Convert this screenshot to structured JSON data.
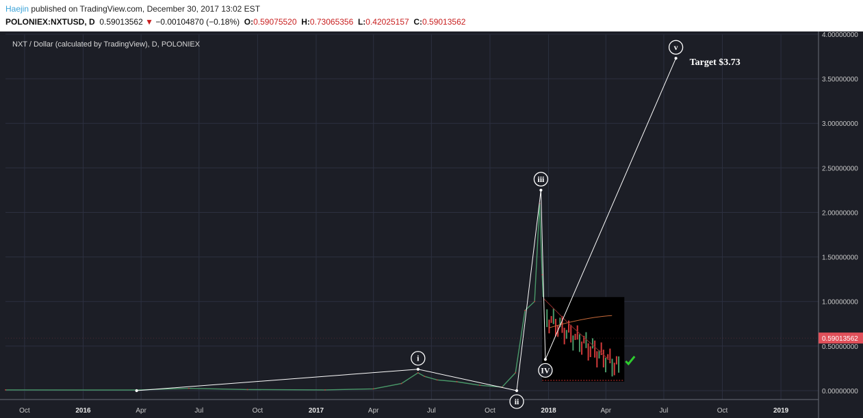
{
  "header": {
    "author": "Haejin",
    "published_text": " published on TradingView.com, December 30, 2017 13:02 EST",
    "symbol": "POLONIEX:NXTUSD, D",
    "last": "0.59013562",
    "change_arrow": "▼",
    "change": "−0.00104870 (−0.18%)",
    "o_label": "O:",
    "o_value": "0.59075520",
    "h_label": "H:",
    "h_value": "0.73065356",
    "l_label": "L:",
    "l_value": "0.42025157",
    "c_label": "C:",
    "c_value": "0.59013562"
  },
  "colors": {
    "background": "#1c1e26",
    "grid": "#2c3040",
    "wave_line": "#ffffff",
    "price_tag": "#e0505a",
    "candle_up": "#4a9a6a",
    "candle_down": "#d23a3a",
    "check": "#2ecc2e"
  },
  "chart_data": {
    "type": "line",
    "title": "NXT / Dollar (calculated by TradingView), D, POLONIEX",
    "y_axis": {
      "range": [
        -0.1,
        4.0
      ],
      "ticks": [
        "0.00000000",
        "0.50000000",
        "1.00000000",
        "1.50000000",
        "2.00000000",
        "2.50000000",
        "3.00000000",
        "3.50000000",
        "4.00000000"
      ],
      "tick_values": [
        0,
        0.5,
        1.0,
        1.5,
        2.0,
        2.5,
        3.0,
        3.5,
        4.0
      ]
    },
    "x_axis": {
      "range": [
        "2015-09-01",
        "2019-03-01"
      ],
      "ticks": [
        {
          "label": "Oct",
          "date": "2015-10-01",
          "bold": false
        },
        {
          "label": "2016",
          "date": "2016-01-01",
          "bold": true
        },
        {
          "label": "Apr",
          "date": "2016-04-01",
          "bold": false
        },
        {
          "label": "Jul",
          "date": "2016-07-01",
          "bold": false
        },
        {
          "label": "Oct",
          "date": "2016-10-01",
          "bold": false
        },
        {
          "label": "2017",
          "date": "2017-01-01",
          "bold": true
        },
        {
          "label": "Apr",
          "date": "2017-04-01",
          "bold": false
        },
        {
          "label": "Jul",
          "date": "2017-07-01",
          "bold": false
        },
        {
          "label": "Oct",
          "date": "2017-10-01",
          "bold": false
        },
        {
          "label": "2018",
          "date": "2018-01-01",
          "bold": true
        },
        {
          "label": "Apr",
          "date": "2018-04-01",
          "bold": false
        },
        {
          "label": "Jul",
          "date": "2018-07-01",
          "bold": false
        },
        {
          "label": "Oct",
          "date": "2018-10-01",
          "bold": false
        },
        {
          "label": "2019",
          "date": "2019-01-01",
          "bold": true
        }
      ]
    },
    "price_series": [
      {
        "date": "2015-09-01",
        "value": 0.008
      },
      {
        "date": "2016-03-25",
        "value": 0.007
      },
      {
        "date": "2016-06-15",
        "value": 0.025
      },
      {
        "date": "2016-09-15",
        "value": 0.012
      },
      {
        "date": "2017-01-15",
        "value": 0.008
      },
      {
        "date": "2017-04-01",
        "value": 0.02
      },
      {
        "date": "2017-05-15",
        "value": 0.08
      },
      {
        "date": "2017-06-10",
        "value": 0.2
      },
      {
        "date": "2017-06-20",
        "value": 0.16
      },
      {
        "date": "2017-07-10",
        "value": 0.12
      },
      {
        "date": "2017-08-10",
        "value": 0.1
      },
      {
        "date": "2017-09-15",
        "value": 0.06
      },
      {
        "date": "2017-10-20",
        "value": 0.04
      },
      {
        "date": "2017-11-10",
        "value": 0.2
      },
      {
        "date": "2017-11-25",
        "value": 0.9
      },
      {
        "date": "2017-12-10",
        "value": 1.0
      },
      {
        "date": "2017-12-18",
        "value": 2.1
      },
      {
        "date": "2017-12-22",
        "value": 1.3
      },
      {
        "date": "2017-12-25",
        "value": 0.8
      },
      {
        "date": "2017-12-30",
        "value": 0.59
      }
    ],
    "last_price_label": "0.59013562",
    "last_price": 0.59013562,
    "wave_points": [
      {
        "label": "i",
        "date": "2017-06-10",
        "value": 0.24,
        "marker": "above"
      },
      {
        "label": "ii",
        "date": "2017-11-12",
        "value": 0.0,
        "marker": "below"
      },
      {
        "label": "iii",
        "date": "2017-12-20",
        "value": 2.25,
        "marker": "above"
      },
      {
        "label": "IV",
        "date": "2017-12-27",
        "value": 0.35,
        "marker": "below"
      },
      {
        "label": "v",
        "date": "2018-07-20",
        "value": 3.73,
        "marker": "above"
      }
    ],
    "wave_start": {
      "date": "2016-03-25",
      "value": 0.0
    },
    "annotations": [
      {
        "text": "Target $3.73"
      }
    ],
    "inset": {
      "description_free": true
    }
  }
}
